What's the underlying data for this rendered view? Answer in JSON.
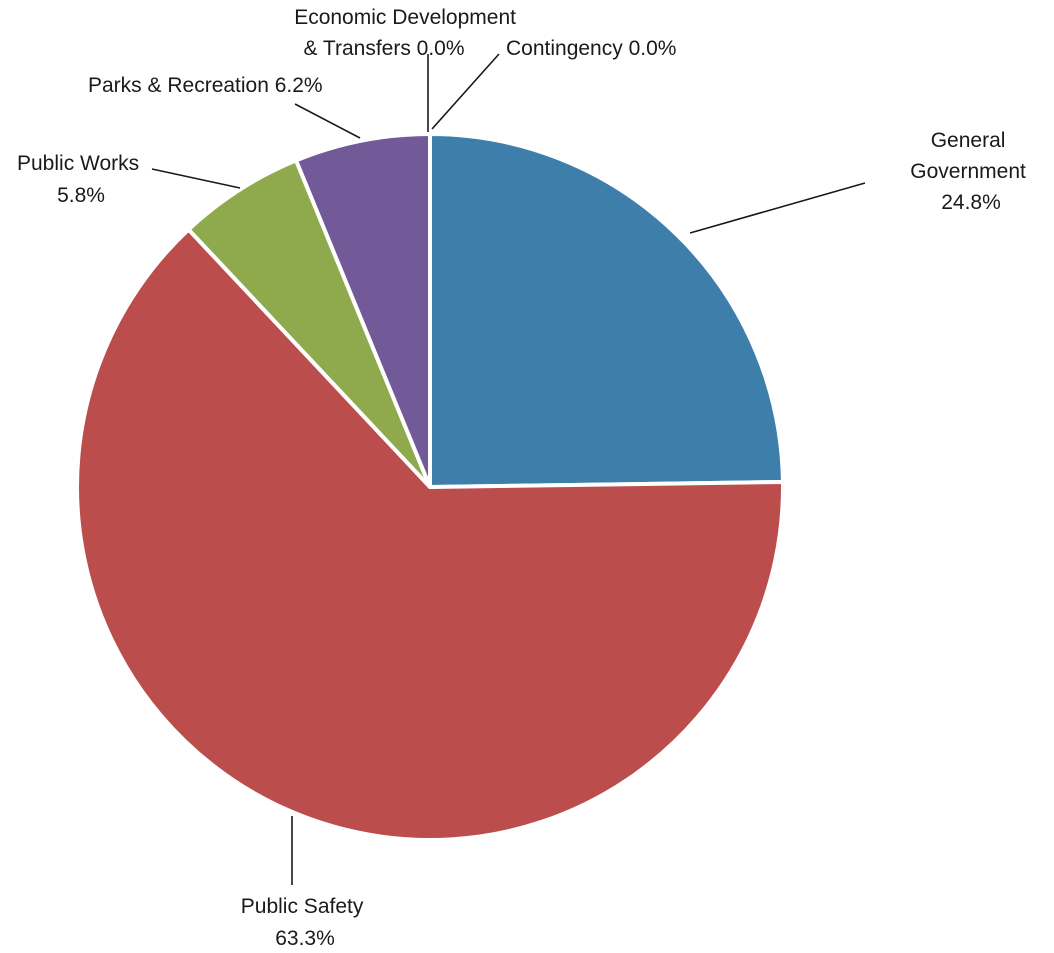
{
  "chart_data": {
    "type": "pie",
    "title": "",
    "start_angle_deg": 0,
    "direction": "clockwise",
    "slices": [
      {
        "key": "general_government",
        "label_lines": [
          "General",
          "Government",
          "24.8%"
        ],
        "value": 24.8,
        "color": "#3E7EAA"
      },
      {
        "key": "public_safety",
        "label_lines": [
          "Public Safety",
          "63.3%"
        ],
        "value": 63.3,
        "color": "#BB4D4C"
      },
      {
        "key": "public_works",
        "label_lines": [
          "Public Works",
          "5.8%"
        ],
        "value": 5.8,
        "color": "#8FA94D"
      },
      {
        "key": "parks_recreation",
        "label_lines": [
          "Parks & Recreation 6.2%"
        ],
        "value": 6.2,
        "color": "#715A97"
      },
      {
        "key": "economic_development",
        "label_lines": [
          "Economic Development",
          "& Transfers 0.0%"
        ],
        "value": 0.0,
        "color": "#3F9AAE"
      },
      {
        "key": "contingency",
        "label_lines": [
          "Contingency 0.0%"
        ],
        "value": 0.0,
        "color": "#E8903A"
      }
    ],
    "legend": "none",
    "data_labels": "outside-with-leader-lines"
  }
}
